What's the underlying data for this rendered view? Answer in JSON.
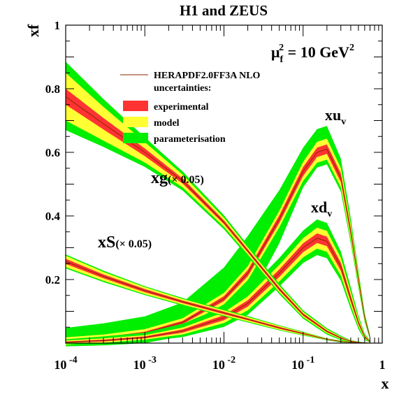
{
  "chart_data": {
    "type": "area",
    "title": "H1 and ZEUS",
    "ylabel": "xf",
    "xlabel": "x",
    "x_scale": "log",
    "xlim": [
      0.0001,
      1
    ],
    "ylim": [
      0,
      1
    ],
    "x_ticks": [
      {
        "base": "10",
        "exp": "-4"
      },
      {
        "base": "10",
        "exp": "-3"
      },
      {
        "base": "10",
        "exp": "-2"
      },
      {
        "base": "10",
        "exp": "-1"
      },
      {
        "base": "1",
        "exp": ""
      }
    ],
    "x_tick_values": [
      0.0001,
      0.001,
      0.01,
      0.1,
      1
    ],
    "y_ticks": [
      "0.2",
      "0.4",
      "0.6",
      "0.8"
    ],
    "y_tick_values": [
      0.2,
      0.4,
      0.6,
      0.8
    ],
    "scale_label": {
      "mu": "μ",
      "sub": "f",
      "sup": "2",
      "eq": " = 10 GeV",
      "unit_sup": "2"
    },
    "legend": {
      "placement": "top-center",
      "central_line": "HERAPDF2.0FF3A NLO",
      "header": "uncertainties:",
      "items": [
        {
          "label": "experimental",
          "color": "#ff3333"
        },
        {
          "label": "model",
          "color": "#ffff33"
        },
        {
          "label": "parameterisation",
          "color": "#00ee00"
        }
      ],
      "line_color": "#8b2500"
    },
    "annotations": [
      {
        "id": "xuv",
        "main": "xu",
        "sub": "v",
        "extra": ""
      },
      {
        "id": "xdv",
        "main": "xd",
        "sub": "v",
        "extra": ""
      },
      {
        "id": "xg",
        "main": "xg",
        "sub": "",
        "extra": "(× 0.05)"
      },
      {
        "id": "xS",
        "main": "xS",
        "sub": "",
        "extra": "(× 0.05)"
      }
    ],
    "series": [
      {
        "name": "xu_v",
        "x": [
          0.0001,
          0.0003,
          0.001,
          0.003,
          0.01,
          0.02,
          0.05,
          0.1,
          0.15,
          0.2,
          0.3,
          0.4,
          0.5,
          0.6,
          0.7
        ],
        "y": [
          0.006,
          0.015,
          0.032,
          0.065,
          0.14,
          0.22,
          0.39,
          0.54,
          0.6,
          0.61,
          0.52,
          0.35,
          0.2,
          0.08,
          0.018
        ],
        "exp": [
          0.004,
          0.004,
          0.004,
          0.005,
          0.008,
          0.01,
          0.012,
          0.014,
          0.015,
          0.015,
          0.014,
          0.011,
          0.008,
          0.004,
          0.002
        ],
        "model": [
          0.008,
          0.008,
          0.008,
          0.008,
          0.01,
          0.012,
          0.014,
          0.016,
          0.018,
          0.018,
          0.016,
          0.012,
          0.009,
          0.005,
          0.002
        ],
        "par_lo": [
          0.004,
          0.01,
          0.02,
          0.03,
          0.055,
          0.07,
          0.05,
          0.02,
          0.015,
          0.015,
          0.014,
          0.012,
          0.009,
          0.005,
          0.002
        ],
        "par_hi": [
          0.03,
          0.035,
          0.04,
          0.05,
          0.08,
          0.095,
          0.065,
          0.045,
          0.04,
          0.04,
          0.03,
          0.02,
          0.012,
          0.006,
          0.003
        ]
      },
      {
        "name": "xd_v",
        "x": [
          0.0001,
          0.0003,
          0.001,
          0.003,
          0.01,
          0.02,
          0.05,
          0.1,
          0.15,
          0.2,
          0.3,
          0.4,
          0.5,
          0.6,
          0.7
        ],
        "y": [
          0.003,
          0.008,
          0.018,
          0.038,
          0.08,
          0.125,
          0.22,
          0.3,
          0.33,
          0.32,
          0.24,
          0.14,
          0.065,
          0.02,
          0.004
        ],
        "exp": [
          0.002,
          0.003,
          0.003,
          0.005,
          0.008,
          0.01,
          0.012,
          0.014,
          0.015,
          0.015,
          0.013,
          0.01,
          0.006,
          0.003,
          0.001
        ],
        "model": [
          0.003,
          0.004,
          0.004,
          0.006,
          0.009,
          0.012,
          0.014,
          0.016,
          0.018,
          0.018,
          0.015,
          0.011,
          0.007,
          0.003,
          0.001
        ],
        "par_lo": [
          0.002,
          0.004,
          0.006,
          0.008,
          0.012,
          0.014,
          0.016,
          0.018,
          0.02,
          0.02,
          0.016,
          0.012,
          0.008,
          0.004,
          0.001
        ],
        "par_hi": [
          0.004,
          0.006,
          0.008,
          0.012,
          0.018,
          0.02,
          0.022,
          0.024,
          0.026,
          0.025,
          0.02,
          0.015,
          0.009,
          0.004,
          0.002
        ]
      },
      {
        "name": "xg (× 0.05)",
        "x": [
          0.0001,
          0.0003,
          0.001,
          0.003,
          0.01,
          0.02,
          0.05,
          0.1,
          0.2,
          0.3,
          0.4,
          0.5,
          0.7
        ],
        "y": [
          0.775,
          0.69,
          0.6,
          0.51,
          0.38,
          0.29,
          0.17,
          0.09,
          0.037,
          0.016,
          0.006,
          0.002,
          0.0
        ],
        "exp": [
          0.025,
          0.018,
          0.012,
          0.008,
          0.006,
          0.005,
          0.005,
          0.004,
          0.003,
          0.002,
          0.001,
          0.001,
          0.0
        ],
        "model": [
          0.05,
          0.035,
          0.02,
          0.012,
          0.008,
          0.006,
          0.005,
          0.004,
          0.003,
          0.002,
          0.001,
          0.001,
          0.0
        ],
        "par_lo": [
          0.03,
          0.02,
          0.014,
          0.01,
          0.008,
          0.007,
          0.006,
          0.005,
          0.004,
          0.003,
          0.001,
          0.001,
          0.0
        ],
        "par_hi": [
          0.035,
          0.025,
          0.015,
          0.01,
          0.008,
          0.007,
          0.006,
          0.005,
          0.004,
          0.003,
          0.001,
          0.001,
          0.0
        ]
      },
      {
        "name": "xS (× 0.05)",
        "x": [
          0.0001,
          0.0003,
          0.001,
          0.003,
          0.01,
          0.02,
          0.05,
          0.1,
          0.2,
          0.3,
          0.5,
          0.7
        ],
        "y": [
          0.257,
          0.21,
          0.165,
          0.13,
          0.095,
          0.075,
          0.048,
          0.03,
          0.012,
          0.005,
          0.001,
          0.0
        ],
        "exp": [
          0.008,
          0.006,
          0.005,
          0.004,
          0.004,
          0.003,
          0.003,
          0.002,
          0.001,
          0.001,
          0.0,
          0.0
        ],
        "model": [
          0.01,
          0.008,
          0.006,
          0.005,
          0.004,
          0.004,
          0.003,
          0.002,
          0.001,
          0.001,
          0.0,
          0.0
        ],
        "par_lo": [
          0.004,
          0.004,
          0.003,
          0.003,
          0.003,
          0.003,
          0.002,
          0.002,
          0.001,
          0.001,
          0.0,
          0.0
        ],
        "par_hi": [
          0.004,
          0.004,
          0.003,
          0.003,
          0.003,
          0.003,
          0.002,
          0.002,
          0.001,
          0.001,
          0.0,
          0.0
        ]
      }
    ]
  }
}
